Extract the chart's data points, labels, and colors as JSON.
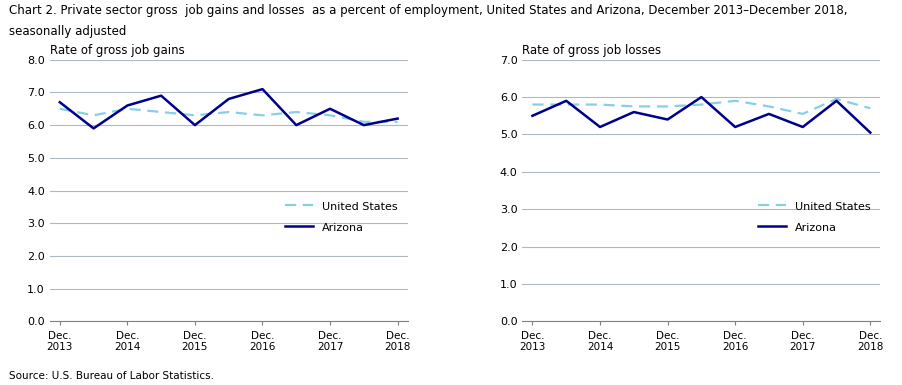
{
  "title_line1": "Chart 2. Private sector gross  job gains and losses  as a percent of employment, United States and Arizona, December 2013–December 2018,",
  "title_line2": "seasonally adjusted",
  "source": "Source: U.S. Bureau of Labor Statistics.",
  "left_label": "Rate of gross job gains",
  "right_label": "Rate of gross job losses",
  "x_labels": [
    "Dec.\n2013",
    "Dec.\n2014",
    "Dec.\n2015",
    "Dec.\n2016",
    "Dec.\n2017",
    "Dec.\n2018"
  ],
  "left_us": [
    6.5,
    6.3,
    6.5,
    6.4,
    6.3,
    6.4,
    6.3,
    6.4,
    6.3,
    6.1,
    6.1
  ],
  "left_az": [
    6.7,
    5.9,
    6.6,
    6.9,
    6.0,
    6.8,
    7.1,
    6.0,
    6.5,
    6.0,
    6.2
  ],
  "right_us": [
    5.8,
    5.8,
    5.8,
    5.75,
    5.75,
    5.8,
    5.9,
    5.75,
    5.55,
    5.95,
    5.7
  ],
  "right_az": [
    5.5,
    5.9,
    5.2,
    5.6,
    5.4,
    6.0,
    5.2,
    5.55,
    5.2,
    5.9,
    5.05
  ],
  "left_ylim": [
    0.0,
    8.0
  ],
  "left_yticks": [
    0.0,
    1.0,
    2.0,
    3.0,
    4.0,
    5.0,
    6.0,
    7.0,
    8.0
  ],
  "right_ylim": [
    0.0,
    7.0
  ],
  "right_yticks": [
    0.0,
    1.0,
    2.0,
    3.0,
    4.0,
    5.0,
    6.0,
    7.0
  ],
  "us_color": "#87CEEB",
  "az_color": "#00008B",
  "grid_color": "#B0B8C0",
  "panel_bg": "#FFFFFF"
}
